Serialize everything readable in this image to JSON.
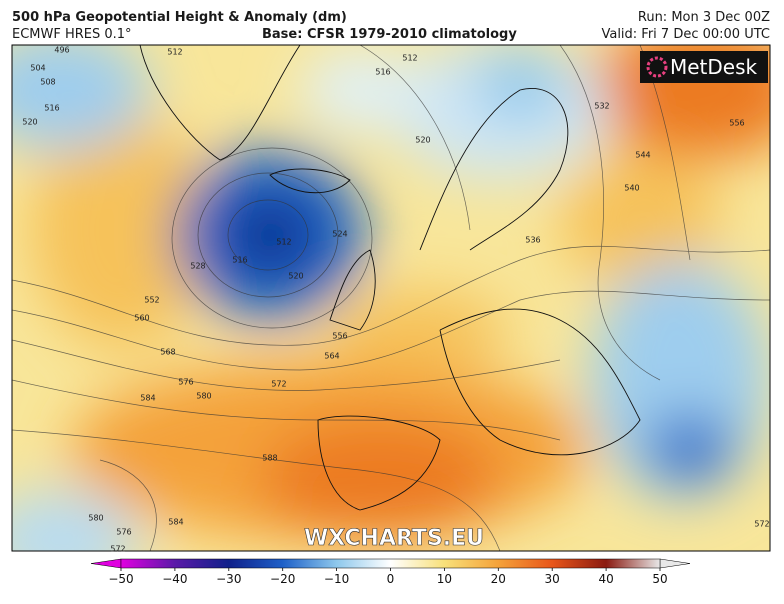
{
  "header": {
    "title": "500 hPa Geopotential Height & Anomaly (dm)",
    "model": "ECMWF HRES 0.1°",
    "base": "Base: CFSR 1979-2010 climatology",
    "run": "Run: Mon 3 Dec 00Z",
    "valid": "Valid: Fri 7 Dec 00:00 UTC"
  },
  "logo": "MetDesk",
  "watermark": "WXCHARTS.EU",
  "colorbar": {
    "ticks": [
      {
        "value": -50,
        "label": "−50"
      },
      {
        "value": -40,
        "label": "−40"
      },
      {
        "value": -30,
        "label": "−30"
      },
      {
        "value": -20,
        "label": "−20"
      },
      {
        "value": -10,
        "label": "−10"
      },
      0,
      10,
      20,
      30,
      40,
      50
    ],
    "colors": [
      "#e000e0",
      "#5a1aa8",
      "#10208a",
      "#1e60c8",
      "#8ec8ec",
      "#ffffff",
      "#f8e07a",
      "#f4a23a",
      "#e8561a",
      "#8a1a10",
      "#e8e8e8"
    ]
  },
  "contour_labels": [
    504,
    508,
    496,
    516,
    520,
    512,
    512,
    516,
    520,
    524,
    512,
    516,
    520,
    528,
    532,
    536,
    544,
    540,
    556,
    552,
    560,
    568,
    576,
    580,
    584,
    572,
    564,
    556,
    588,
    584,
    580,
    576,
    572,
    572
  ]
}
